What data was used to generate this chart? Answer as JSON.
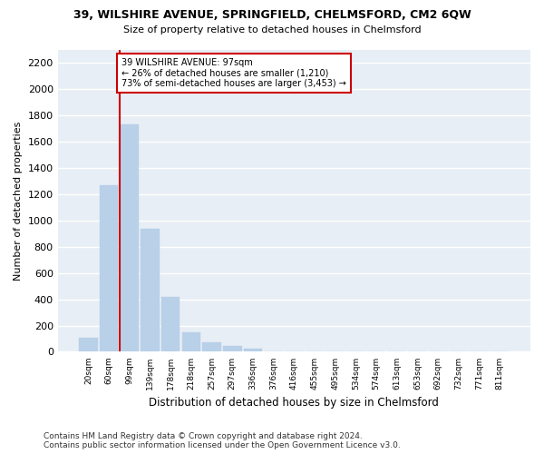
{
  "title": "39, WILSHIRE AVENUE, SPRINGFIELD, CHELMSFORD, CM2 6QW",
  "subtitle": "Size of property relative to detached houses in Chelmsford",
  "xlabel": "Distribution of detached houses by size in Chelmsford",
  "ylabel": "Number of detached properties",
  "bar_labels": [
    "20sqm",
    "60sqm",
    "99sqm",
    "139sqm",
    "178sqm",
    "218sqm",
    "257sqm",
    "297sqm",
    "336sqm",
    "376sqm",
    "416sqm",
    "455sqm",
    "495sqm",
    "534sqm",
    "574sqm",
    "613sqm",
    "653sqm",
    "692sqm",
    "732sqm",
    "771sqm",
    "811sqm"
  ],
  "bar_values": [
    110,
    1270,
    1730,
    940,
    415,
    150,
    75,
    45,
    25,
    0,
    0,
    0,
    0,
    0,
    0,
    0,
    0,
    0,
    0,
    0,
    0
  ],
  "bar_color": "#b8d0e8",
  "bar_edge_color": "#b8d0e8",
  "background_color": "#e8eef5",
  "fig_background_color": "#ffffff",
  "grid_color": "#ffffff",
  "annotation_text": "39 WILSHIRE AVENUE: 97sqm\n← 26% of detached houses are smaller (1,210)\n73% of semi-detached houses are larger (3,453) →",
  "annotation_box_color": "#ffffff",
  "annotation_box_edge_color": "#cc0000",
  "redline_color": "#cc0000",
  "redline_x": 1.5,
  "ylim": [
    0,
    2300
  ],
  "yticks": [
    0,
    200,
    400,
    600,
    800,
    1000,
    1200,
    1400,
    1600,
    1800,
    2000,
    2200
  ],
  "footer_line1": "Contains HM Land Registry data © Crown copyright and database right 2024.",
  "footer_line2": "Contains public sector information licensed under the Open Government Licence v3.0."
}
